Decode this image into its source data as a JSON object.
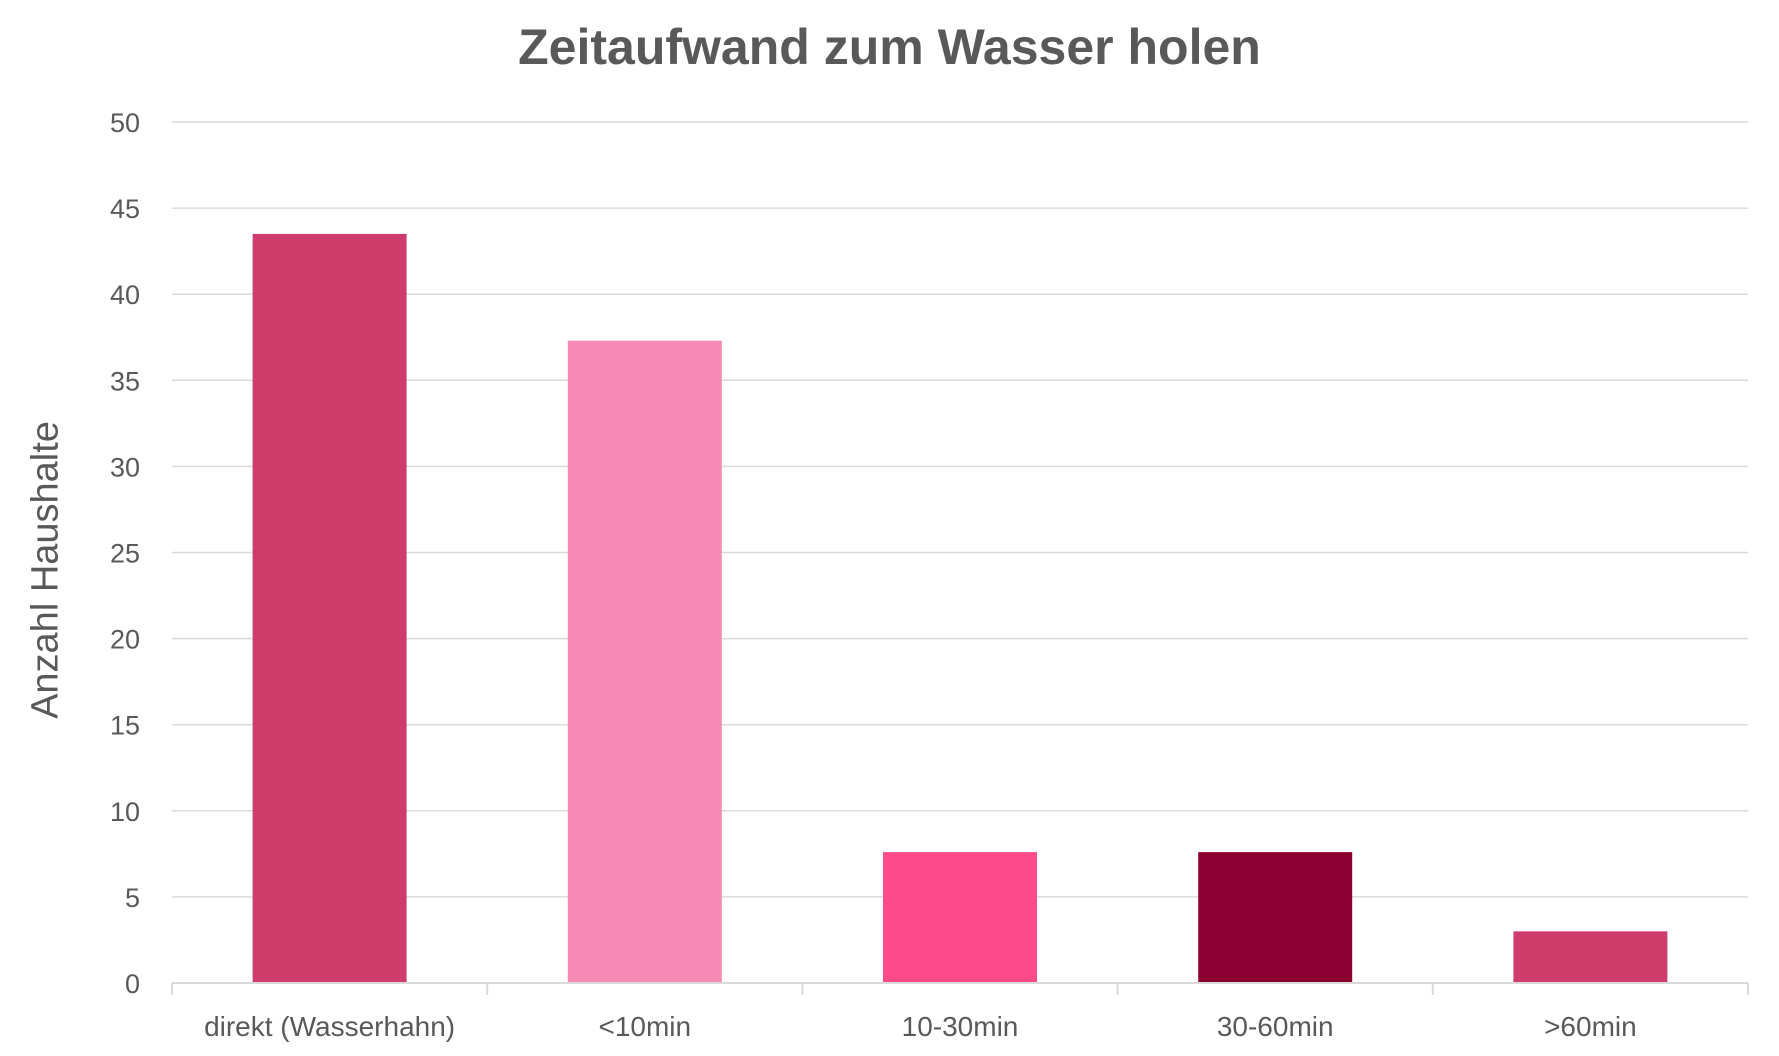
{
  "chart_data": {
    "type": "bar",
    "title": "Zeitaufwand zum Wasser holen",
    "ylabel": "Anzahl Haushalte",
    "xlabel": "",
    "ylim": [
      0,
      50
    ],
    "yticks": [
      0,
      5,
      10,
      15,
      20,
      25,
      30,
      35,
      40,
      45,
      50
    ],
    "grid": true,
    "categories": [
      "direkt (Wasserhahn)",
      "<10min",
      "10-30min",
      "30-60min",
      ">60min"
    ],
    "values": [
      43.5,
      37.3,
      7.6,
      7.6,
      3.0
    ],
    "colors": [
      "#CF3C6B",
      "#F78AB4",
      "#FF4A89",
      "#8B0030",
      "#CF3C6B"
    ]
  }
}
